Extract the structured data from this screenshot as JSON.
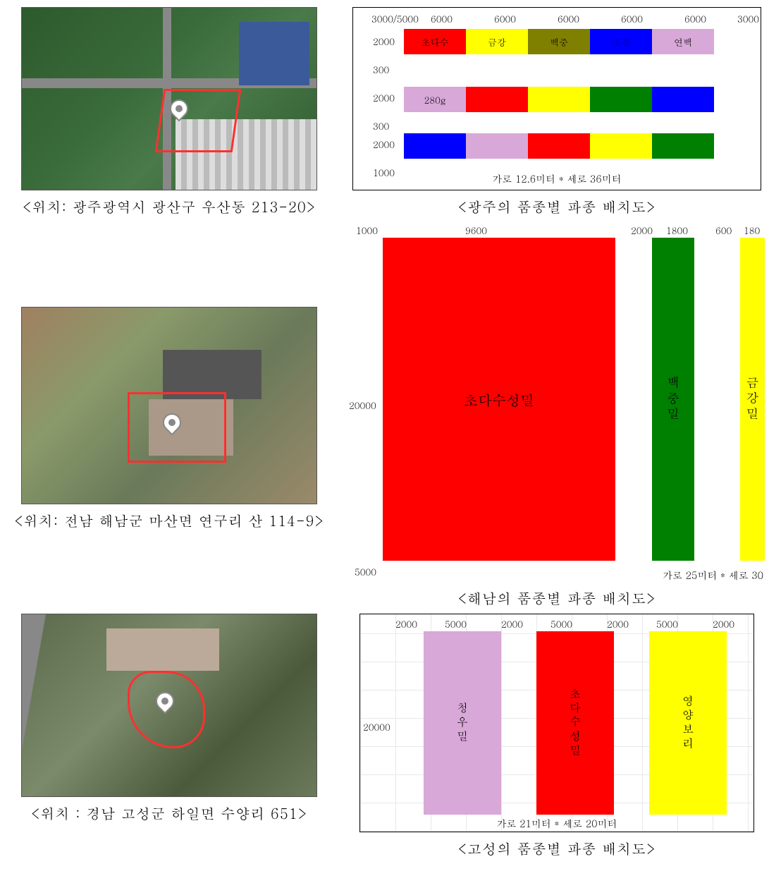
{
  "captions": {
    "sat1": "<위치: 광주광역시 광산구 우산동 213-20>",
    "chart1": "<광주의 품종별 파종 배치도>",
    "sat2": "<위치: 전남 해남군 마산면 연구리 산 114-9>",
    "chart2": "<해남의 품종별 파종 배치도>",
    "sat3": "<위치 : 경남 고성군 하일면 수양리 651>",
    "chart3": "<고성의 품종별 파종 배치도>"
  },
  "colors": {
    "red": "#ff0000",
    "yellow": "#ffff00",
    "olive": "#808000",
    "blue": "#0000ff",
    "plum": "#d8a8d8",
    "green": "#008000",
    "border": "#000000",
    "bg": "#ffffff",
    "grid3": "#e8e8e8"
  },
  "chart1": {
    "top_nums": [
      "3000/5000",
      "6000",
      "6000",
      "6000",
      "6000",
      "6000",
      "3000"
    ],
    "left_nums": [
      "2000",
      "300",
      "2000",
      "300",
      "2000",
      "1000"
    ],
    "row1": [
      {
        "label": "초다수",
        "color": "#ff0000",
        "text_color": "#000000"
      },
      {
        "label": "금강",
        "color": "#ffff00",
        "text_color": "#000000"
      },
      {
        "label": "백중",
        "color": "#808000",
        "text_color": "#000000"
      },
      {
        "label": "조경",
        "color": "#0000ff",
        "text_color": "#000080"
      },
      {
        "label": "연백",
        "color": "#d8a8d8",
        "text_color": "#000000"
      }
    ],
    "row2_first_label": "280g",
    "row2_colors": [
      "#d8a8d8",
      "#ff0000",
      "#ffff00",
      "#008000",
      "#0000ff"
    ],
    "row3_colors": [
      "#0000ff",
      "#d8a8d8",
      "#ff0000",
      "#ffff00",
      "#008000"
    ],
    "footnote": "가로 12.6미터 * 세로 36미터"
  },
  "chart2": {
    "top_nums": [
      "1000",
      "9600",
      "2000",
      "1800",
      "600",
      "180"
    ],
    "left_num": "20000",
    "bottom_left_num": "5000",
    "blocks": [
      {
        "label": "초다수성밀",
        "color": "#ff0000",
        "text_color": "#000000",
        "vertical": false
      },
      {
        "label": "백중밀",
        "color": "#008000",
        "text_color": "#000000",
        "vertical": true
      },
      {
        "label": "금강밀",
        "color": "#ffff00",
        "text_color": "#000000",
        "vertical": true
      }
    ],
    "footnote": "가로 25미터 * 세로 30"
  },
  "chart3": {
    "top_nums": [
      "2000",
      "5000",
      "2000",
      "5000",
      "2000",
      "5000",
      "2000"
    ],
    "left_num": "20000",
    "blocks": [
      {
        "label": "청우밀",
        "color": "#d8a8d8",
        "text_color": "#000000"
      },
      {
        "label": "초다수성밀",
        "color": "#ff0000",
        "text_color": "#000000"
      },
      {
        "label": "영양보리",
        "color": "#ffff00",
        "text_color": "#000000"
      }
    ],
    "footnote": "가로 21미터 * 세로 20미터"
  }
}
